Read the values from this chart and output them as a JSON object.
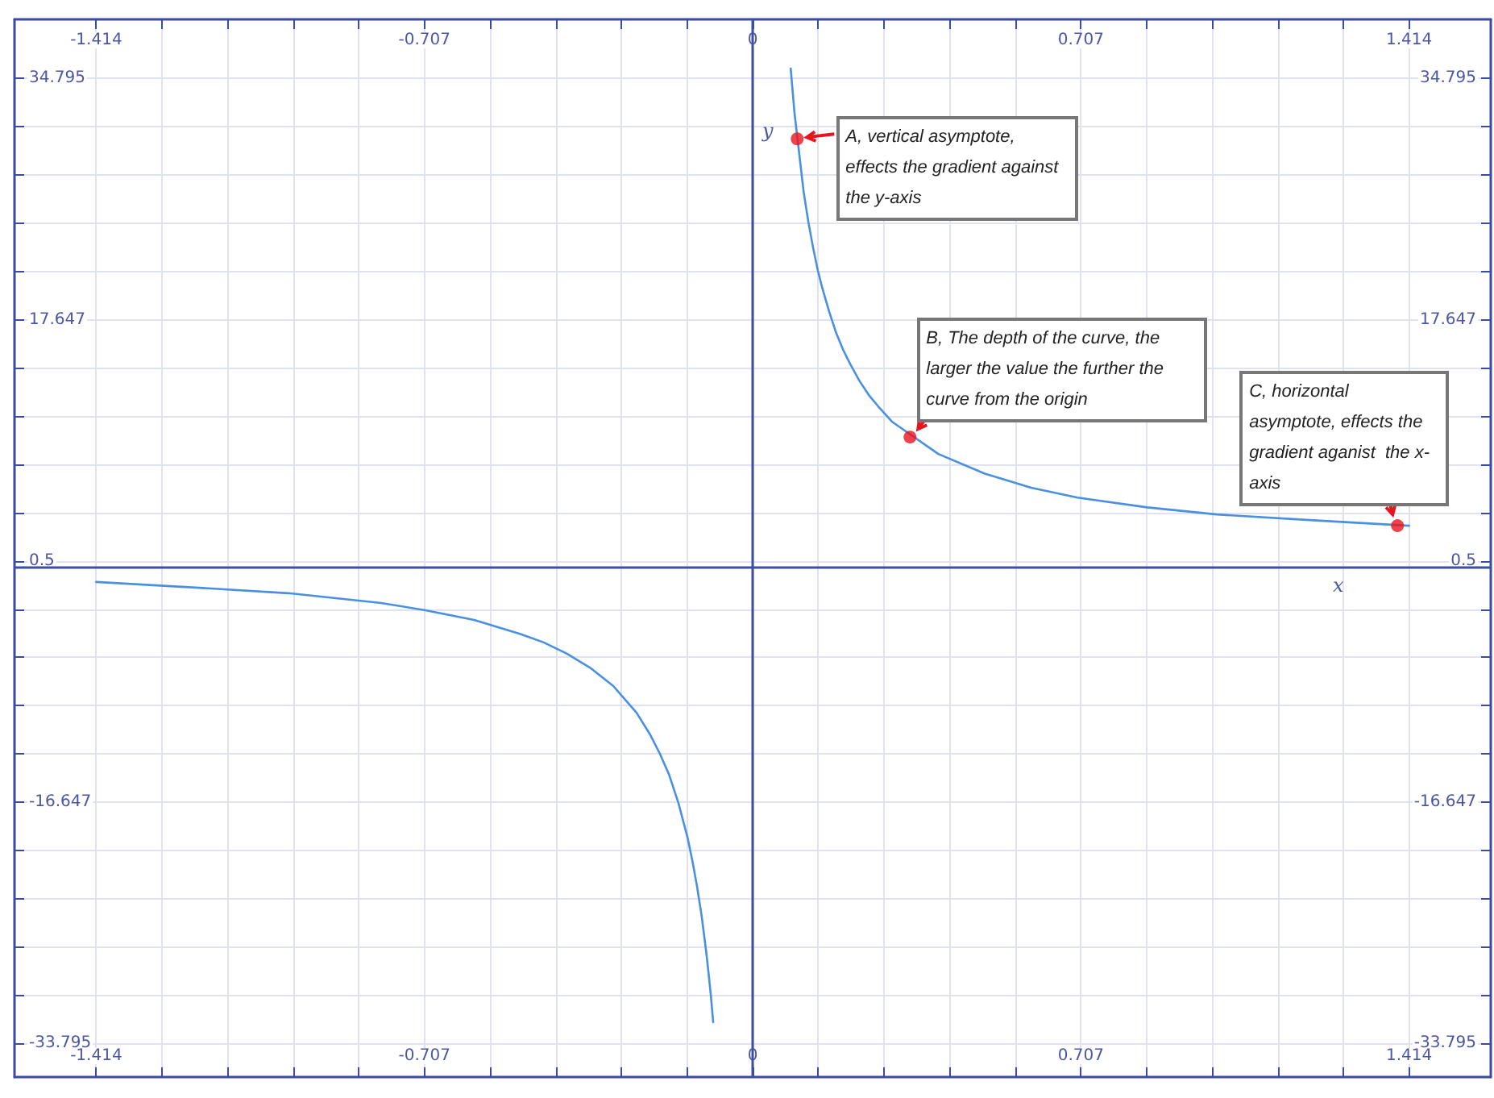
{
  "chart_data": {
    "type": "line",
    "xlim": [
      -1.59,
      1.59
    ],
    "ylim": [
      -36.2,
      39.0
    ],
    "xticks": [
      -1.414,
      {
        "value": -1.2726,
        "label": null
      },
      {
        "value": -1.1312,
        "label": null
      },
      {
        "value": -0.9898,
        "label": null
      },
      {
        "value": -0.8484,
        "label": null
      },
      -0.707,
      {
        "value": -0.5656,
        "label": null
      },
      {
        "value": -0.4242,
        "label": null
      },
      {
        "value": -0.2828,
        "label": null
      },
      {
        "value": -0.1414,
        "label": null
      },
      0,
      {
        "value": 0.1414,
        "label": null
      },
      {
        "value": 0.2828,
        "label": null
      },
      {
        "value": 0.4242,
        "label": null
      },
      {
        "value": 0.5656,
        "label": null
      },
      0.707,
      {
        "value": 0.8484,
        "label": null
      },
      {
        "value": 0.9898,
        "label": null
      },
      {
        "value": 1.1312,
        "label": null
      },
      {
        "value": 1.2726,
        "label": null
      },
      1.414
    ],
    "x2lim": [
      -1.59,
      1.59
    ],
    "x2ticks": [
      -1.414,
      {
        "value": -1.2726,
        "label": null
      },
      {
        "value": -1.1312,
        "label": null
      },
      {
        "value": -0.9898,
        "label": null
      },
      {
        "value": -0.8484,
        "label": null
      },
      -0.707,
      {
        "value": -0.5656,
        "label": null
      },
      {
        "value": -0.4242,
        "label": null
      },
      {
        "value": -0.2828,
        "label": null
      },
      {
        "value": -0.1414,
        "label": null
      },
      0,
      {
        "value": 0.1414,
        "label": null
      },
      {
        "value": 0.2828,
        "label": null
      },
      {
        "value": 0.4242,
        "label": null
      },
      {
        "value": 0.5656,
        "label": null
      },
      0.707,
      {
        "value": 0.8484,
        "label": null
      },
      {
        "value": 0.9898,
        "label": null
      },
      {
        "value": 1.1312,
        "label": null
      },
      {
        "value": 1.2726,
        "label": null
      },
      1.414
    ],
    "yticks": [
      34.795,
      {
        "value": 31.3654,
        "label": null
      },
      {
        "value": 27.9358,
        "label": null
      },
      {
        "value": 24.5062,
        "label": null
      },
      {
        "value": 21.0766,
        "label": null
      },
      17.647,
      {
        "value": 14.2174,
        "label": null
      },
      {
        "value": 10.7878,
        "label": null
      },
      {
        "value": 7.3582,
        "label": null
      },
      {
        "value": 3.9286,
        "label": null
      },
      0.5,
      {
        "value": -2.9296,
        "label": null
      },
      {
        "value": -6.3592,
        "label": null
      },
      {
        "value": -9.7888,
        "label": null
      },
      {
        "value": -13.2184,
        "label": null
      },
      -16.647,
      {
        "value": -20.0766,
        "label": null
      },
      {
        "value": -23.5062,
        "label": null
      },
      {
        "value": -26.9358,
        "label": null
      },
      {
        "value": -30.3654,
        "label": null
      },
      -33.795
    ],
    "y2lim": [
      -36.2,
      39.0
    ],
    "y2ticks": [
      34.795,
      {
        "value": 31.3654,
        "label": null
      },
      {
        "value": 27.9358,
        "label": null
      },
      {
        "value": 24.5062,
        "label": null
      },
      {
        "value": 21.0766,
        "label": null
      },
      17.647,
      {
        "value": 14.2174,
        "label": null
      },
      {
        "value": 10.7878,
        "label": null
      },
      {
        "value": 7.3582,
        "label": null
      },
      {
        "value": 3.9286,
        "label": null
      },
      0.5,
      {
        "value": -2.9296,
        "label": null
      },
      {
        "value": -6.3592,
        "label": null
      },
      {
        "value": -9.7888,
        "label": null
      },
      {
        "value": -13.2184,
        "label": null
      },
      -16.647,
      {
        "value": -20.0766,
        "label": null
      },
      {
        "value": -23.5062,
        "label": null
      },
      {
        "value": -26.9358,
        "label": null
      },
      {
        "value": -30.3654,
        "label": null
      },
      -33.795
    ],
    "grid": true,
    "marker": "none",
    "line_style": "solid",
    "series": [
      {
        "color": "#4a90e2",
        "x": [
          0.082,
          0.09,
          0.11,
          0.12,
          0.13,
          0.14,
          0.15,
          0.165,
          0.18,
          0.195,
          0.21,
          0.23,
          0.25,
          0.27,
          0.3,
          0.4,
          0.5,
          0.6,
          0.7,
          0.85,
          1.0,
          1.2,
          1.414
        ],
        "values": [
          35.5,
          32.4,
          26.7,
          24.6,
          22.8,
          21.2,
          19.9,
          18.2,
          16.7,
          15.5,
          14.5,
          13.3,
          12.3,
          11.5,
          10.4,
          8.1,
          6.7,
          5.7,
          5.0,
          4.3,
          3.8,
          3.4,
          3.0
        ]
      },
      {
        "color": "#4a90e2",
        "x": [
          -1.414,
          -1.2,
          -1.0,
          -0.8,
          -0.707,
          -0.6,
          -0.5,
          -0.45,
          -0.4,
          -0.35,
          -0.3,
          -0.25,
          -0.22,
          -0.2,
          -0.18,
          -0.16,
          -0.14,
          -0.13,
          -0.12,
          -0.11,
          -0.1,
          -0.095,
          -0.09,
          -0.085
        ],
        "values": [
          -1.0,
          -1.4,
          -1.8,
          -2.5,
          -3.0,
          -3.7,
          -4.7,
          -5.3,
          -6.1,
          -7.1,
          -8.4,
          -10.3,
          -11.9,
          -13.2,
          -14.7,
          -16.7,
          -19.2,
          -20.8,
          -22.6,
          -24.7,
          -27.3,
          -28.8,
          -30.4,
          -32.3
        ]
      },
      {
        "type": "scatter",
        "marker": "circle",
        "color": "#e8141c",
        "x": [
          0.096,
          0.339,
          1.389
        ],
        "values": [
          30.5,
          9.3,
          3.0
        ]
      }
    ],
    "ref_lines": [
      {
        "axis": "y",
        "value": 0,
        "label": "x",
        "color": "#3f4fa0"
      },
      {
        "axis": "x",
        "value": 0,
        "label": "y",
        "color": "#3f4fa0"
      }
    ],
    "annotations": [
      {
        "text": "A, vertical asymptote, effects the gradient against the y-axis",
        "x": 0.096,
        "y": 30.5
      },
      {
        "text": "B, The depth of the curve, the larger the value the further the curve from the origin",
        "x": 0.339,
        "y": 9.3
      },
      {
        "text": "C, horizontal asymptote, effects the gradient aganist  the x-axis",
        "x": 1.389,
        "y": 3.0
      }
    ]
  }
}
